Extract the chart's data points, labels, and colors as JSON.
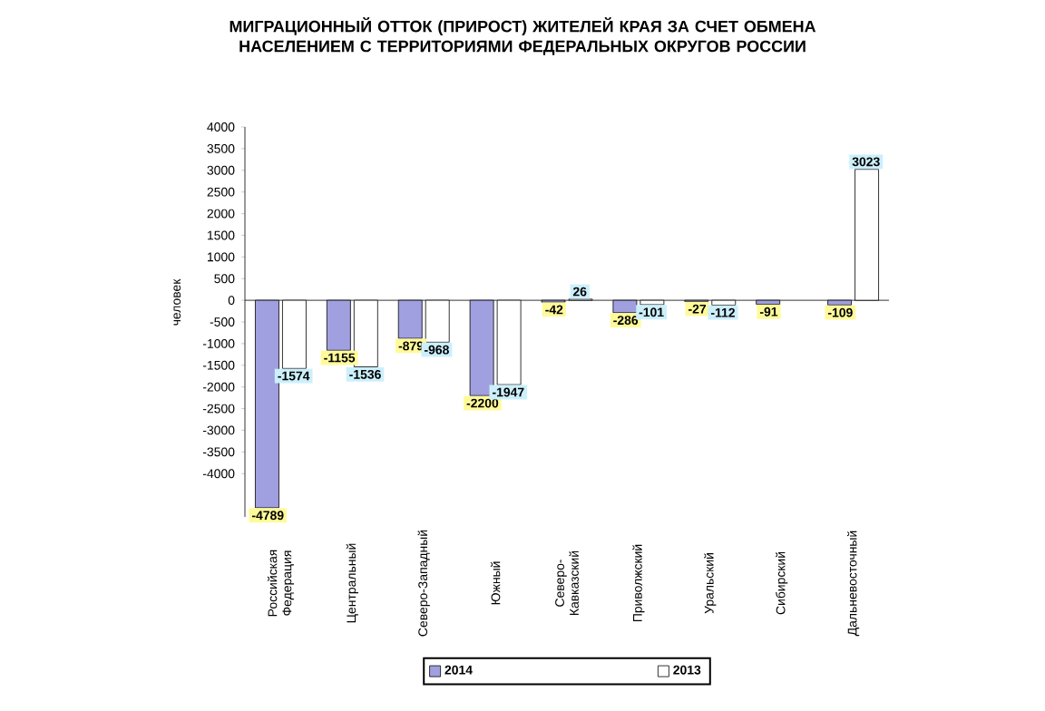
{
  "chart_data": {
    "type": "bar",
    "title": "МИГРАЦИОННЫЙ ОТТОК (ПРИРОСТ) ЖИТЕЛЕЙ КРАЯ ЗА СЧЕТ ОБМЕНА НАСЕЛЕНИЕМ С ТЕРРИТОРИЯМИ ФЕДЕРАЛЬНЫХ ОКРУГОВ РОССИИ",
    "ylabel": "человек",
    "categories": [
      "Российская Федерация",
      "Центральный",
      "Северо-Западный",
      "Южный",
      "Северо-Кавказский",
      "Приволжский",
      "Уральский",
      "Сибирский",
      "Дальневосточный"
    ],
    "series": [
      {
        "name": "2014",
        "color": "#a0a0e0",
        "values": [
          -4789,
          -1155,
          -879,
          -2200,
          -42,
          -286,
          -27,
          -91,
          -109
        ]
      },
      {
        "name": "2013",
        "color": "#ffffff",
        "values": [
          -1574,
          -1536,
          -968,
          -1947,
          26,
          -101,
          -112,
          null,
          3023
        ]
      }
    ],
    "ylim": [
      -5000,
      4000
    ],
    "yticks": [
      -4000,
      -3500,
      -3000,
      -2500,
      -2000,
      -1500,
      -1000,
      -500,
      0,
      500,
      1000,
      1500,
      2000,
      2500,
      3000,
      3500,
      4000
    ],
    "data_labels": true,
    "legend": "bottom"
  }
}
